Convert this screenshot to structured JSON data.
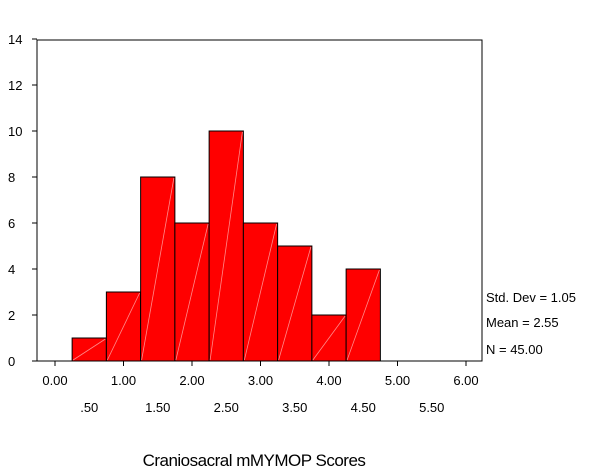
{
  "chart_data": {
    "type": "bar",
    "title": "",
    "xlabel": "Craniosacral mMYMOP Scores",
    "ylabel": "",
    "bin_edges": [
      0.25,
      0.75,
      1.25,
      1.75,
      2.25,
      2.75,
      3.25,
      3.75,
      4.25,
      4.75
    ],
    "values": [
      1,
      3,
      8,
      6,
      10,
      6,
      5,
      2,
      4
    ],
    "xlim": [
      -0.25,
      6.25
    ],
    "ylim": [
      0,
      14
    ],
    "yticks": [
      0,
      2,
      4,
      6,
      8,
      10,
      12,
      14
    ],
    "xticks_major": [
      {
        "v": 0,
        "label": "0.00"
      },
      {
        "v": 1,
        "label": "1.00"
      },
      {
        "v": 2,
        "label": "2.00"
      },
      {
        "v": 3,
        "label": "3.00"
      },
      {
        "v": 4,
        "label": "4.00"
      },
      {
        "v": 5,
        "label": "5.00"
      },
      {
        "v": 6,
        "label": "6.00"
      }
    ],
    "xticks_minor": [
      {
        "v": 0.5,
        "label": ".50"
      },
      {
        "v": 1.5,
        "label": "1.50"
      },
      {
        "v": 2.5,
        "label": "2.50"
      },
      {
        "v": 3.5,
        "label": "3.50"
      },
      {
        "v": 4.5,
        "label": "4.50"
      },
      {
        "v": 5.5,
        "label": "5.50"
      }
    ],
    "bar_color": "#ff0000",
    "grid": false,
    "stats": {
      "std_dev": "Std. Dev = 1.05",
      "mean": "Mean = 2.55",
      "n": "N = 45.00"
    }
  }
}
